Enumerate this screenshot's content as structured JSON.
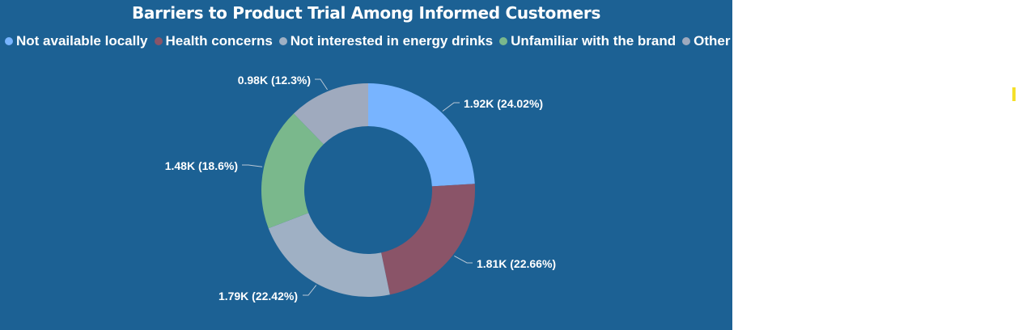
{
  "chart_data": {
    "type": "donut",
    "title": "Barriers to Product Trial Among Informed Customers",
    "legend_position": "top-left",
    "categories": [
      "Not available locally",
      "Health concerns",
      "Not interested in energy drinks",
      "Unfamiliar with the brand",
      "Other"
    ],
    "values": [
      1.92,
      1.81,
      1.79,
      1.48,
      0.98
    ],
    "percents": [
      24.02,
      22.66,
      22.42,
      18.6,
      12.3
    ],
    "value_unit": "K",
    "labels": [
      "1.92K (24.02%)",
      "1.81K (22.66%)",
      "1.79K (22.42%)",
      "1.48K (18.6%)",
      "0.98K (12.3%)"
    ],
    "colors": [
      "#78b4ff",
      "#8a5468",
      "#9fb0c4",
      "#7ab88c",
      "#9faabe"
    ]
  },
  "colors": {
    "background": "#1c6194",
    "text": "#ffffff",
    "accent_marker": "#f5e02a"
  }
}
